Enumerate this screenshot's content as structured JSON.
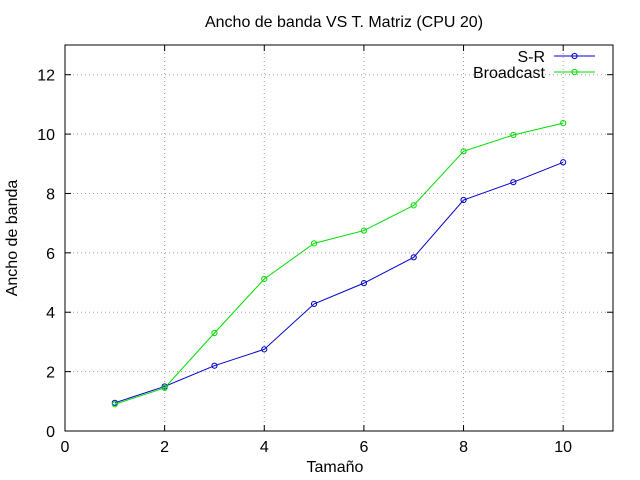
{
  "chart_data": {
    "type": "line",
    "title": "Ancho de banda VS T. Matriz (CPU 20)",
    "xlabel": "Tamaño",
    "ylabel": "Ancho de banda",
    "xlim": [
      0,
      11
    ],
    "ylim": [
      0,
      13
    ],
    "xticks": [
      0,
      2,
      4,
      6,
      8,
      10
    ],
    "yticks": [
      0,
      2,
      4,
      6,
      8,
      10,
      12
    ],
    "grid": true,
    "legend_position": "top-right",
    "x": [
      1,
      2,
      3,
      4,
      5,
      6,
      7,
      8,
      9,
      10
    ],
    "series": [
      {
        "name": "S-R",
        "color": "#0000cc",
        "values": [
          0.95,
          1.5,
          2.2,
          2.75,
          4.28,
          4.98,
          5.85,
          7.78,
          8.38,
          9.05
        ]
      },
      {
        "name": "Broadcast",
        "color": "#00dd00",
        "values": [
          0.9,
          1.45,
          3.3,
          5.12,
          6.32,
          6.75,
          7.6,
          9.42,
          9.97,
          10.37
        ]
      }
    ]
  }
}
